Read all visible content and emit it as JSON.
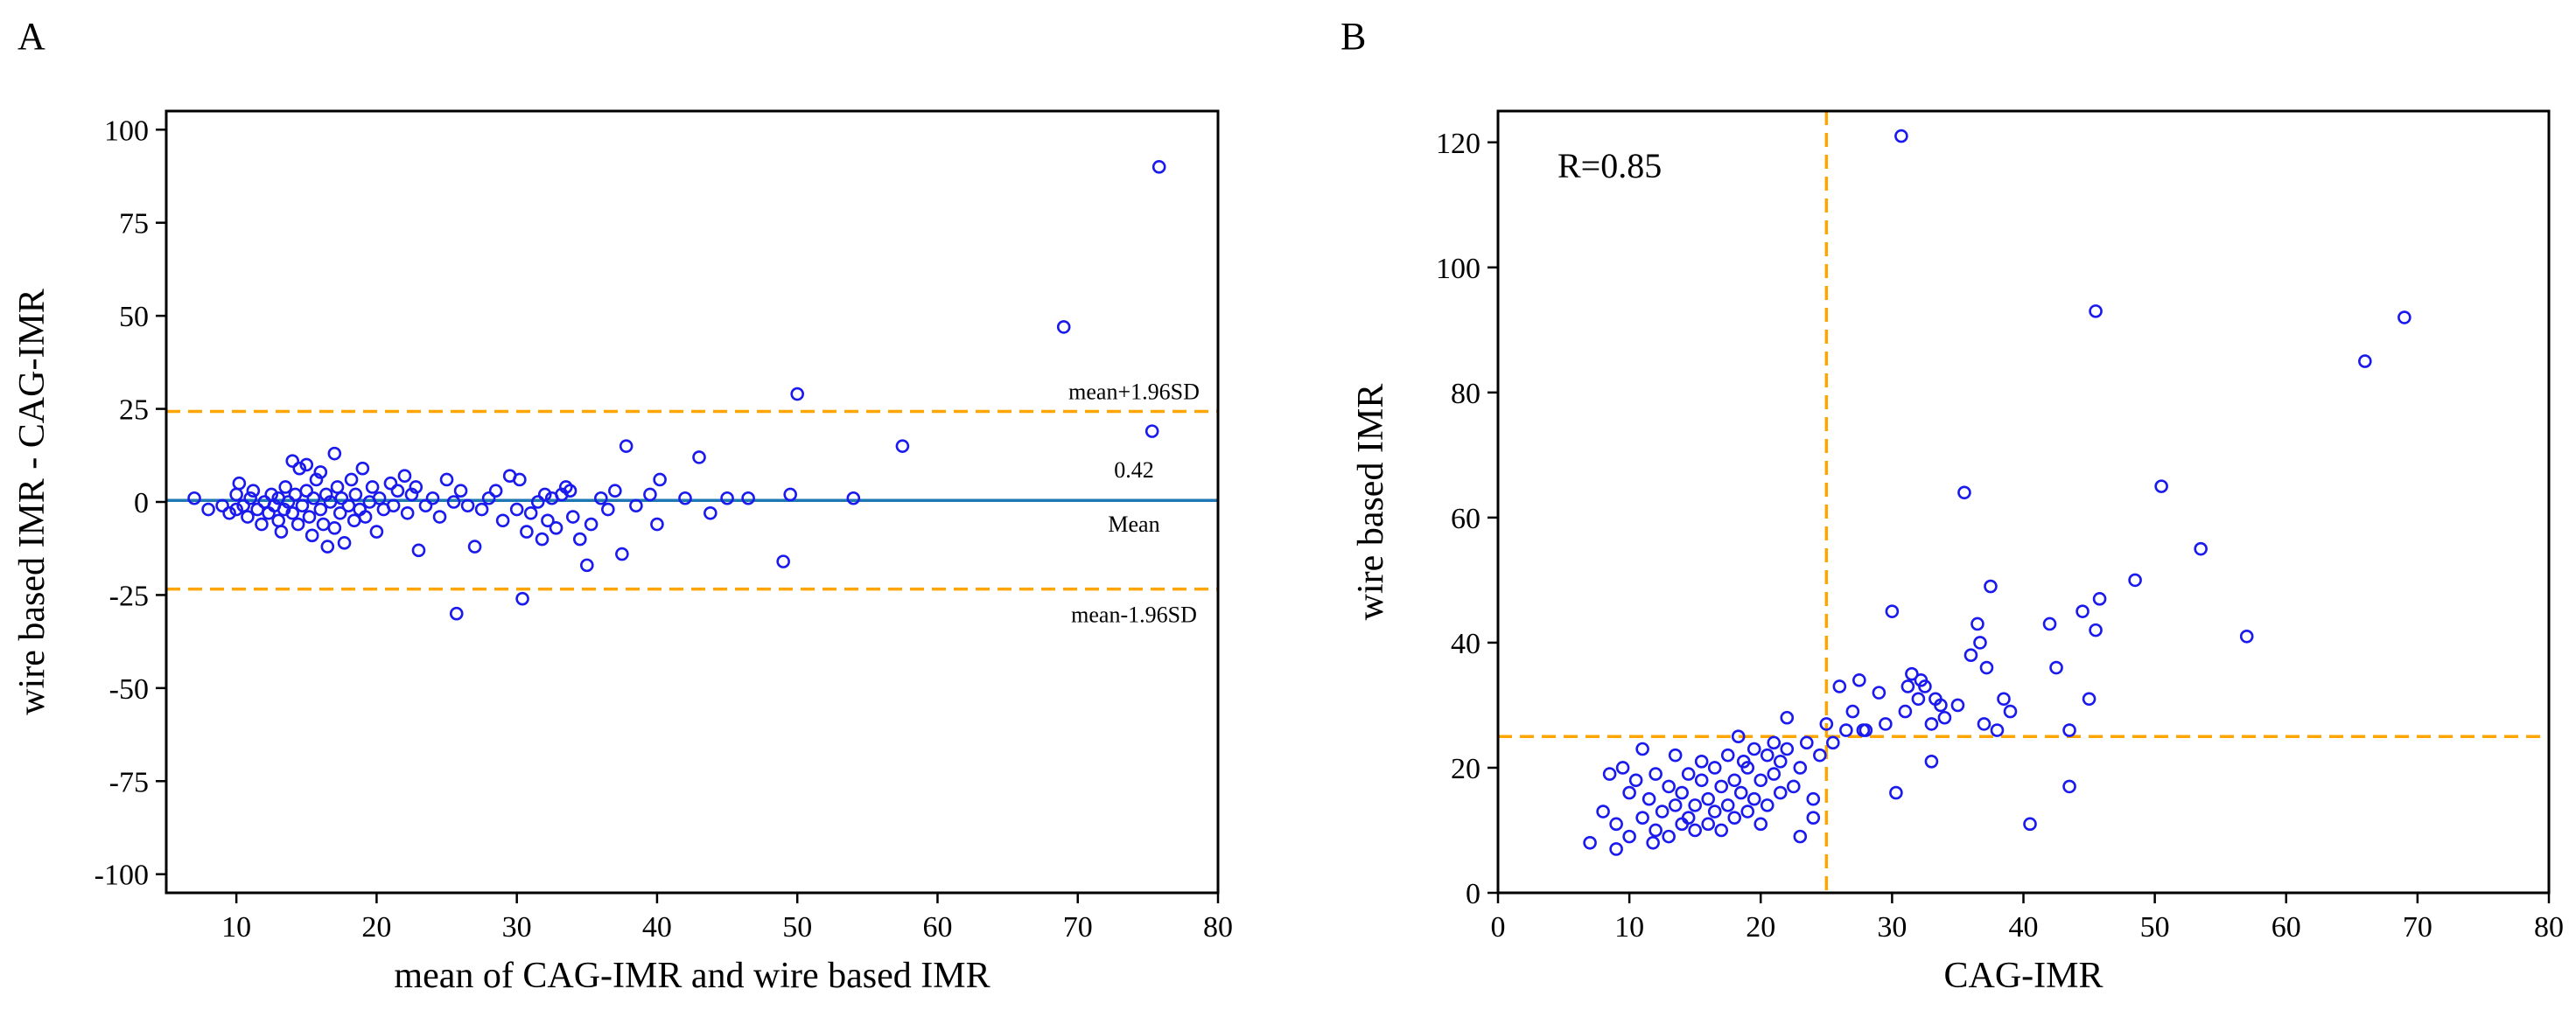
{
  "chart_data": [
    {
      "panel_label": "A",
      "type": "scatter",
      "title": "",
      "xlabel": "mean of CAG-IMR and wire based IMR",
      "ylabel": "wire based IMR - CAG-IMR",
      "xlim": [
        5,
        80
      ],
      "ylim": [
        -105,
        105
      ],
      "xticks": [
        10,
        20,
        30,
        40,
        50,
        60,
        70,
        80
      ],
      "yticks": [
        100,
        75,
        50,
        25,
        0,
        -25,
        -50,
        -75,
        -100
      ],
      "grid": false,
      "colors": {
        "points": "#1a1aee",
        "mean_line": "#1f77b4",
        "limit_lines": "#ffa500"
      },
      "reference_lines": [
        {
          "name": "mean+1.96SD",
          "y": 24.3,
          "style": "dashed",
          "label": "mean+1.96SD"
        },
        {
          "name": "mean",
          "y": 0.42,
          "style": "solid",
          "label_value": "0.42",
          "label": "Mean"
        },
        {
          "name": "mean-1.96SD",
          "y": -23.4,
          "style": "dashed",
          "label": "mean-1.96SD"
        }
      ],
      "points": [
        [
          7,
          1
        ],
        [
          8,
          -2
        ],
        [
          9,
          -1
        ],
        [
          9.5,
          -3
        ],
        [
          10,
          2
        ],
        [
          10,
          -2
        ],
        [
          10.2,
          5
        ],
        [
          10.5,
          -1
        ],
        [
          10.8,
          -4
        ],
        [
          11,
          1
        ],
        [
          11.2,
          3
        ],
        [
          11.5,
          -2
        ],
        [
          11.8,
          -6
        ],
        [
          12,
          0
        ],
        [
          12.3,
          -3
        ],
        [
          12.5,
          2
        ],
        [
          12.7,
          -1
        ],
        [
          13,
          -5
        ],
        [
          13,
          1
        ],
        [
          13.2,
          -8
        ],
        [
          13.4,
          -2
        ],
        [
          13.5,
          4
        ],
        [
          13.7,
          0
        ],
        [
          14,
          11
        ],
        [
          14,
          -3
        ],
        [
          14.2,
          2
        ],
        [
          14.4,
          -6
        ],
        [
          14.5,
          9
        ],
        [
          14.7,
          -1
        ],
        [
          15,
          10
        ],
        [
          15,
          3
        ],
        [
          15.2,
          -4
        ],
        [
          15.4,
          -9
        ],
        [
          15.5,
          1
        ],
        [
          15.7,
          6
        ],
        [
          16,
          -2
        ],
        [
          16,
          8
        ],
        [
          16.2,
          -6
        ],
        [
          16.4,
          2
        ],
        [
          16.5,
          -12
        ],
        [
          16.7,
          0
        ],
        [
          17,
          13
        ],
        [
          17,
          -7
        ],
        [
          17.2,
          4
        ],
        [
          17.4,
          -3
        ],
        [
          17.5,
          1
        ],
        [
          17.7,
          -11
        ],
        [
          18,
          -1
        ],
        [
          18.2,
          6
        ],
        [
          18.4,
          -5
        ],
        [
          18.5,
          2
        ],
        [
          18.8,
          -2
        ],
        [
          19,
          9
        ],
        [
          19.2,
          -4
        ],
        [
          19.5,
          0
        ],
        [
          19.7,
          4
        ],
        [
          20,
          -8
        ],
        [
          20.2,
          1
        ],
        [
          20.5,
          -2
        ],
        [
          21,
          5
        ],
        [
          21.2,
          -1
        ],
        [
          21.5,
          3
        ],
        [
          22,
          7
        ],
        [
          22.2,
          -3
        ],
        [
          22.5,
          2
        ],
        [
          22.8,
          4
        ],
        [
          23,
          -13
        ],
        [
          23.5,
          -1
        ],
        [
          24,
          1
        ],
        [
          24.5,
          -4
        ],
        [
          25,
          6
        ],
        [
          25.5,
          0
        ],
        [
          25.7,
          -30
        ],
        [
          26,
          3
        ],
        [
          26.5,
          -1
        ],
        [
          27,
          -12
        ],
        [
          27.5,
          -2
        ],
        [
          28,
          1
        ],
        [
          28.5,
          3
        ],
        [
          29,
          -5
        ],
        [
          29.5,
          7
        ],
        [
          30,
          -2
        ],
        [
          30.2,
          6
        ],
        [
          30.4,
          -26
        ],
        [
          30.7,
          -8
        ],
        [
          31,
          -3
        ],
        [
          31.5,
          0
        ],
        [
          31.8,
          -10
        ],
        [
          32,
          2
        ],
        [
          32.2,
          -5
        ],
        [
          32.5,
          1
        ],
        [
          32.8,
          -7
        ],
        [
          33.2,
          2
        ],
        [
          33.5,
          4
        ],
        [
          33.8,
          3
        ],
        [
          34,
          -4
        ],
        [
          34.5,
          -10
        ],
        [
          35,
          -17
        ],
        [
          35.3,
          -6
        ],
        [
          36,
          1
        ],
        [
          36.5,
          -2
        ],
        [
          37,
          3
        ],
        [
          37.5,
          -14
        ],
        [
          37.8,
          15
        ],
        [
          38.5,
          -1
        ],
        [
          39.5,
          2
        ],
        [
          40,
          -6
        ],
        [
          40.2,
          6
        ],
        [
          42,
          1
        ],
        [
          43,
          12
        ],
        [
          43.8,
          -3
        ],
        [
          45,
          1
        ],
        [
          46.5,
          1
        ],
        [
          49,
          -16
        ],
        [
          49.5,
          2
        ],
        [
          50,
          29
        ],
        [
          54,
          1
        ],
        [
          57.5,
          15
        ],
        [
          69,
          47
        ],
        [
          75.3,
          19
        ],
        [
          75.8,
          90
        ]
      ]
    },
    {
      "panel_label": "B",
      "type": "scatter",
      "title": "",
      "xlabel": "CAG-IMR",
      "ylabel": "wire based IMR",
      "xlim": [
        0,
        80
      ],
      "ylim": [
        0,
        125
      ],
      "xticks": [
        0,
        10,
        20,
        30,
        40,
        50,
        60,
        70,
        80
      ],
      "yticks": [
        0,
        20,
        40,
        60,
        80,
        100,
        120
      ],
      "grid": false,
      "annotation": "R=0.85",
      "colors": {
        "points": "#1a1aee",
        "threshold_lines": "#ffa500"
      },
      "reference_lines": [
        {
          "name": "x-threshold",
          "x": 25,
          "style": "dashed"
        },
        {
          "name": "y-threshold",
          "y": 25,
          "style": "dashed"
        }
      ],
      "points": [
        [
          7,
          8
        ],
        [
          8,
          13
        ],
        [
          8.5,
          19
        ],
        [
          9,
          11
        ],
        [
          9,
          7
        ],
        [
          9.5,
          20
        ],
        [
          10,
          16
        ],
        [
          10,
          9
        ],
        [
          10.5,
          18
        ],
        [
          11,
          12
        ],
        [
          11,
          23
        ],
        [
          11.5,
          15
        ],
        [
          11.8,
          8
        ],
        [
          12,
          10
        ],
        [
          12,
          19
        ],
        [
          12.5,
          13
        ],
        [
          13,
          17
        ],
        [
          13,
          9
        ],
        [
          13.5,
          22
        ],
        [
          13.5,
          14
        ],
        [
          14,
          11
        ],
        [
          14,
          16
        ],
        [
          14.5,
          19
        ],
        [
          14.5,
          12
        ],
        [
          15,
          14
        ],
        [
          15,
          10
        ],
        [
          15.5,
          18
        ],
        [
          15.5,
          21
        ],
        [
          16,
          11
        ],
        [
          16,
          15
        ],
        [
          16.5,
          13
        ],
        [
          16.5,
          20
        ],
        [
          17,
          17
        ],
        [
          17,
          10
        ],
        [
          17.5,
          22
        ],
        [
          17.5,
          14
        ],
        [
          18,
          12
        ],
        [
          18,
          18
        ],
        [
          18.3,
          25
        ],
        [
          18.5,
          16
        ],
        [
          18.7,
          21
        ],
        [
          19,
          13
        ],
        [
          19,
          20
        ],
        [
          19.5,
          15
        ],
        [
          19.5,
          23
        ],
        [
          20,
          18
        ],
        [
          20,
          11
        ],
        [
          20.5,
          22
        ],
        [
          20.5,
          14
        ],
        [
          21,
          19
        ],
        [
          21,
          24
        ],
        [
          21.5,
          16
        ],
        [
          21.5,
          21
        ],
        [
          22,
          23
        ],
        [
          22,
          28
        ],
        [
          22.5,
          17
        ],
        [
          23,
          20
        ],
        [
          23,
          9
        ],
        [
          23.5,
          24
        ],
        [
          24,
          15
        ],
        [
          24,
          12
        ],
        [
          24.5,
          22
        ],
        [
          25,
          27
        ],
        [
          25.5,
          24
        ],
        [
          26,
          33
        ],
        [
          26.5,
          26
        ],
        [
          27,
          29
        ],
        [
          27.5,
          34
        ],
        [
          27.8,
          26
        ],
        [
          28,
          26
        ],
        [
          29,
          32
        ],
        [
          29.5,
          27
        ],
        [
          30,
          45
        ],
        [
          30.3,
          16
        ],
        [
          30.7,
          121
        ],
        [
          31,
          29
        ],
        [
          31.2,
          33
        ],
        [
          31.5,
          35
        ],
        [
          32,
          31
        ],
        [
          32.2,
          34
        ],
        [
          32.5,
          33
        ],
        [
          33,
          21
        ],
        [
          33,
          27
        ],
        [
          33.3,
          31
        ],
        [
          33.7,
          30
        ],
        [
          34,
          28
        ],
        [
          35,
          30
        ],
        [
          35.5,
          64
        ],
        [
          36,
          38
        ],
        [
          36.5,
          43
        ],
        [
          36.7,
          40
        ],
        [
          37,
          27
        ],
        [
          37.2,
          36
        ],
        [
          37.5,
          49
        ],
        [
          38,
          26
        ],
        [
          38.5,
          31
        ],
        [
          39,
          29
        ],
        [
          40.5,
          11
        ],
        [
          42,
          43
        ],
        [
          42.5,
          36
        ],
        [
          43.5,
          17
        ],
        [
          43.5,
          26
        ],
        [
          44.5,
          45
        ],
        [
          45,
          31
        ],
        [
          45.5,
          93
        ],
        [
          45.5,
          42
        ],
        [
          45.8,
          47
        ],
        [
          48.5,
          50
        ],
        [
          50.5,
          65
        ],
        [
          53.5,
          55
        ],
        [
          57,
          41
        ],
        [
          66,
          85
        ],
        [
          69,
          92
        ]
      ]
    }
  ]
}
